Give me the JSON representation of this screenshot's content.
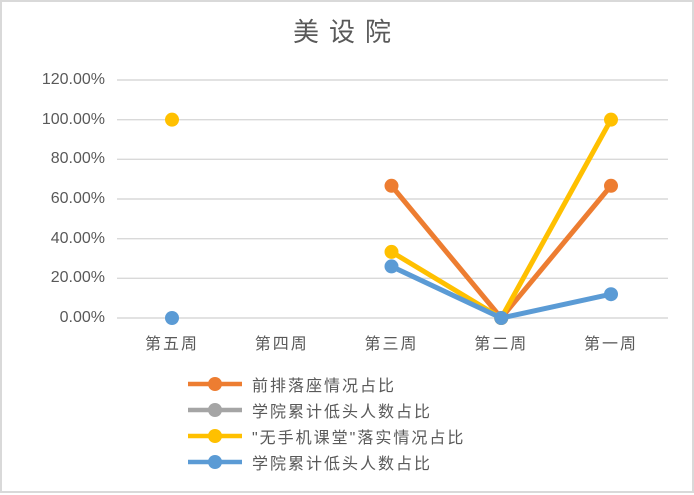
{
  "window": {
    "background_color": "#FFFFFF",
    "border_color": "#D9D9D9"
  },
  "chart_data": {
    "type": "line",
    "title": "美设院",
    "categories": [
      "第五周",
      "第四周",
      "第三周",
      "第二周",
      "第一周"
    ],
    "y_tick_labels": [
      "120.00%",
      "100.00%",
      "80.00%",
      "60.00%",
      "40.00%",
      "20.00%",
      "0.00%"
    ],
    "ylim": [
      0,
      1.2
    ],
    "grid": true,
    "legend_position": "bottom-left",
    "text_color": "#595959",
    "gridline_color": "#D9D9D9",
    "series": [
      {
        "name": "前排落座情况占比",
        "color": "#ED7D31",
        "values": [
          null,
          null,
          0.6667,
          0,
          0.6667
        ]
      },
      {
        "name": "学院累计低头人数占比",
        "color": "#A5A5A5",
        "values": [
          null,
          null,
          null,
          null,
          null
        ]
      },
      {
        "name": "\"无手机课堂\"落实情况占比",
        "color": "#FFC000",
        "values": [
          1.0,
          null,
          0.3333,
          0,
          1.0
        ]
      },
      {
        "name": "学院累计低头人数占比",
        "color": "#5B9BD5",
        "values": [
          0,
          null,
          0.26,
          0,
          0.12
        ]
      }
    ]
  }
}
